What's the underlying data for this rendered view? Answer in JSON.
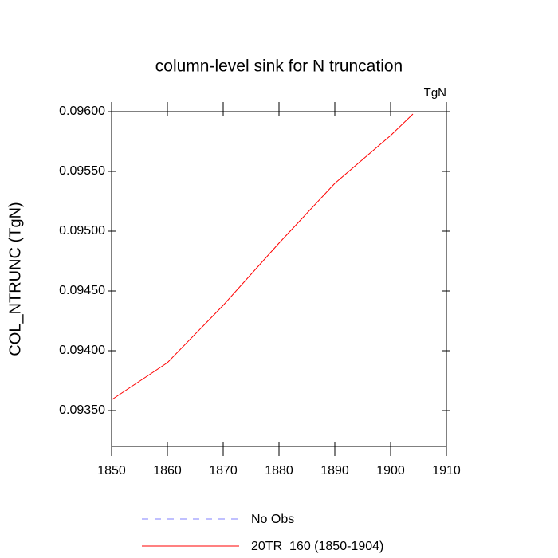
{
  "chart_data": {
    "type": "line",
    "title": "column-level sink for N truncation",
    "units_label": "TgN",
    "y_label": "COL_NTRUNC  (TgN)",
    "x": [
      1850,
      1860,
      1870,
      1880,
      1890,
      1900,
      1904
    ],
    "series": [
      {
        "name": "No Obs",
        "color": "#8080ff",
        "dashed": true,
        "values": [
          null,
          null,
          null,
          null,
          null,
          null,
          null
        ]
      },
      {
        "name": "20TR_160 (1850-1904)",
        "color": "#ff0000",
        "dashed": false,
        "values": [
          0.09359,
          0.0939,
          0.09438,
          0.0949,
          0.0954,
          0.0958,
          0.09598
        ]
      }
    ],
    "xlim": [
      1850,
      1910
    ],
    "xticks": [
      1850,
      1860,
      1870,
      1880,
      1890,
      1900,
      1910
    ],
    "ylim": [
      0.0932,
      0.096
    ],
    "yticks": [
      {
        "value": 0.0935,
        "label": "0.09350"
      },
      {
        "value": 0.094,
        "label": "0.09400"
      },
      {
        "value": 0.0945,
        "label": "0.09450"
      },
      {
        "value": 0.095,
        "label": "0.09500"
      },
      {
        "value": 0.0955,
        "label": "0.09550"
      },
      {
        "value": 0.096,
        "label": "0.09600"
      }
    ]
  }
}
